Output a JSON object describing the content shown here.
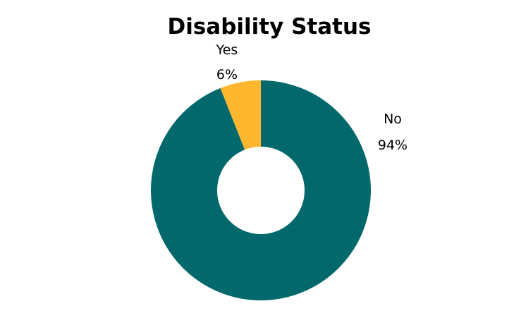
{
  "chart_data": {
    "type": "pie",
    "variant": "donut",
    "title": "Disability Status",
    "slices": [
      {
        "label": "No",
        "value": 94,
        "value_label": "94%",
        "color": "#02686B"
      },
      {
        "label": "Yes",
        "value": 6,
        "value_label": "6%",
        "color": "#FDB72E"
      }
    ],
    "start_angle_deg": 0,
    "direction": "clockwise",
    "legend": "none"
  }
}
